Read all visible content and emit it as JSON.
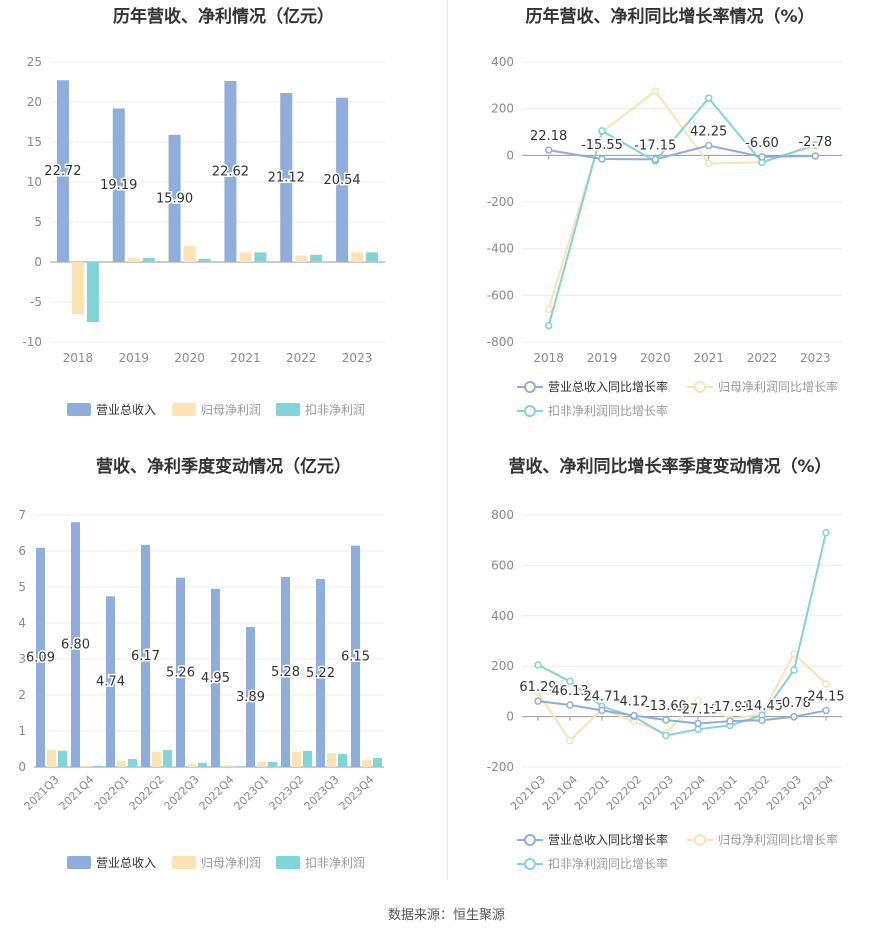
{
  "colors": {
    "revenue": "#8eaedd",
    "net_profit": "#fde2b3",
    "deducted_profit": "#7fd5d8",
    "axis_text": "#8a8a8a",
    "grid": "#ececec",
    "label_text": "#333333"
  },
  "chart_data": [
    {
      "type": "bar",
      "title": "历年营收、净利情况（亿元）",
      "categories": [
        "2018",
        "2019",
        "2020",
        "2021",
        "2022",
        "2023"
      ],
      "series": [
        {
          "name": "营业总收入",
          "values": [
            22.72,
            19.19,
            15.9,
            22.62,
            21.12,
            20.54
          ],
          "labels": [
            "22.72",
            "19.19",
            "15.90",
            "22.62",
            "21.12",
            "20.54"
          ]
        },
        {
          "name": "归母净利润",
          "values": [
            -6.5,
            0.5,
            2.0,
            1.2,
            0.8,
            1.2
          ]
        },
        {
          "name": "扣非净利润",
          "values": [
            -7.5,
            0.5,
            0.4,
            1.2,
            0.9,
            1.2
          ]
        }
      ],
      "ylim": [
        -10,
        25
      ],
      "yticks": [
        -10,
        -5,
        0,
        5,
        10,
        15,
        20,
        25
      ],
      "legend": "bottom"
    },
    {
      "type": "line",
      "title": "历年营收、净利同比增长率情况（%）",
      "categories": [
        "2018",
        "2019",
        "2020",
        "2021",
        "2022",
        "2023"
      ],
      "series": [
        {
          "name": "营业总收入同比增长率",
          "values": [
            22.18,
            -15.55,
            -17.15,
            42.25,
            -6.6,
            -2.78
          ],
          "labels": [
            "22.18",
            "-15.55",
            "-17.15",
            "42.25",
            "-6.60",
            "-2.78"
          ]
        },
        {
          "name": "归母净利润同比增长率",
          "values": [
            -660,
            100,
            275,
            -35,
            -30,
            40
          ]
        },
        {
          "name": "扣非净利润同比增长率",
          "values": [
            -730,
            105,
            -25,
            245,
            -30,
            45
          ]
        }
      ],
      "ylim": [
        -800,
        400
      ],
      "yticks": [
        -800,
        -600,
        -400,
        -200,
        0,
        200,
        400
      ],
      "legend": "bottom"
    },
    {
      "type": "bar",
      "title": "营收、净利季度变动情况（亿元）",
      "categories": [
        "2021Q3",
        "2021Q4",
        "2022Q1",
        "2022Q2",
        "2022Q3",
        "2022Q4",
        "2023Q1",
        "2023Q2",
        "2023Q3",
        "2023Q4"
      ],
      "series": [
        {
          "name": "营业总收入",
          "values": [
            6.09,
            6.8,
            4.74,
            6.17,
            5.26,
            4.95,
            3.89,
            5.28,
            5.22,
            6.15
          ],
          "labels": [
            "6.09",
            "6.80",
            "4.74",
            "6.17",
            "5.26",
            "4.95",
            "3.89",
            "5.28",
            "5.22",
            "6.15"
          ]
        },
        {
          "name": "归母净利润",
          "values": [
            0.48,
            0.03,
            0.18,
            0.42,
            0.08,
            0.05,
            0.15,
            0.42,
            0.38,
            0.2
          ]
        },
        {
          "name": "扣非净利润",
          "values": [
            0.45,
            0.03,
            0.22,
            0.47,
            0.12,
            0.02,
            0.14,
            0.45,
            0.36,
            0.25
          ]
        }
      ],
      "ylim": [
        0,
        7
      ],
      "yticks": [
        0,
        1,
        2,
        3,
        4,
        5,
        6,
        7
      ],
      "legend": "bottom"
    },
    {
      "type": "line",
      "title": "营收、净利同比增长率季度变动情况（%）",
      "categories": [
        "2021Q3",
        "2021Q4",
        "2022Q1",
        "2022Q2",
        "2022Q3",
        "2022Q4",
        "2023Q1",
        "2023Q2",
        "2023Q3",
        "2023Q4"
      ],
      "series": [
        {
          "name": "营业总收入同比增长率",
          "values": [
            61.29,
            46.13,
            24.71,
            4.12,
            -13.6,
            -27.19,
            -17.91,
            -14.45,
            -0.78,
            24.15
          ],
          "labels": [
            "61.29",
            "46.13",
            "24.71",
            "4.12",
            "-13.60",
            "-27.19",
            "-17.91",
            "-14.45",
            "-0.78",
            "24.15"
          ]
        },
        {
          "name": "归母净利润同比增长率",
          "values": [
            95,
            -95,
            30,
            -20,
            -65,
            65,
            -10,
            10,
            250,
            130
          ]
        },
        {
          "name": "扣非净利润同比增长率",
          "values": [
            205,
            140,
            40,
            0,
            -75,
            -50,
            -35,
            5,
            185,
            730
          ]
        }
      ],
      "ylim": [
        -200,
        800
      ],
      "yticks": [
        -200,
        0,
        200,
        400,
        600,
        800
      ],
      "legend": "bottom"
    }
  ],
  "footer": "数据来源：恒生聚源"
}
